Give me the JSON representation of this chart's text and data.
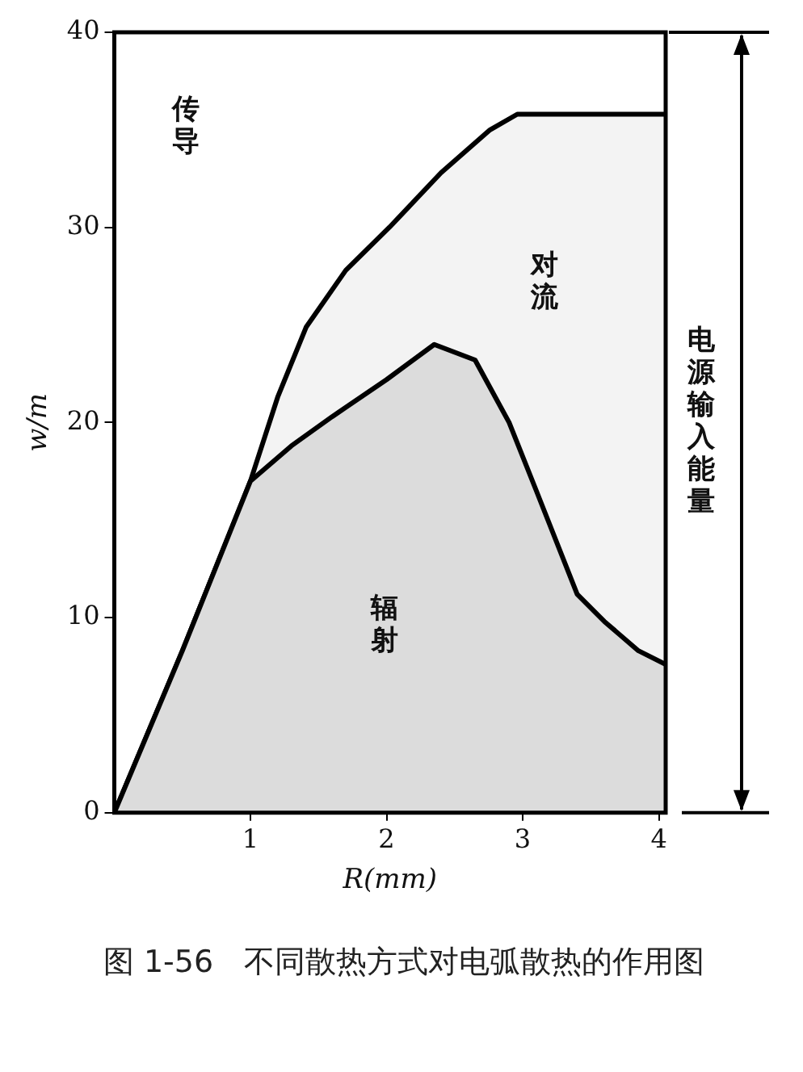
{
  "chart_data": {
    "type": "area",
    "xlabel": "R(mm)",
    "ylabel": "w/m",
    "xlim": [
      0,
      4.05
    ],
    "xticks": [
      1,
      2,
      3,
      4
    ],
    "ylim": [
      0,
      40
    ],
    "yticks": [
      0,
      10,
      20,
      30,
      40
    ],
    "grid": false,
    "legend": false,
    "series": [
      {
        "color": "#000000",
        "x": [
          0,
          0.5,
          1.0,
          1.3,
          1.6,
          2.0,
          2.35,
          2.65,
          2.9,
          3.1,
          3.4,
          3.6,
          3.85,
          4.05
        ],
        "values": [
          0,
          8.3,
          17,
          18.8,
          20.3,
          22.2,
          24.0,
          23.2,
          20,
          16.5,
          11.2,
          9.8,
          8.3,
          7.6
        ]
      },
      {
        "color": "#000000",
        "x": [
          0,
          0.5,
          1.0,
          1.2,
          1.41,
          1.7,
          2.02,
          2.4,
          2.76,
          2.96,
          4.05
        ],
        "values": [
          0,
          8.3,
          17,
          21.3,
          24.9,
          27.8,
          30,
          32.8,
          35,
          35.8,
          35.8
        ]
      }
    ],
    "annotations": [
      "传导",
      "对流",
      "辐射",
      "电源输入能量",
      "图 1-56　不同散热方式对电弧散热的作用图"
    ]
  }
}
